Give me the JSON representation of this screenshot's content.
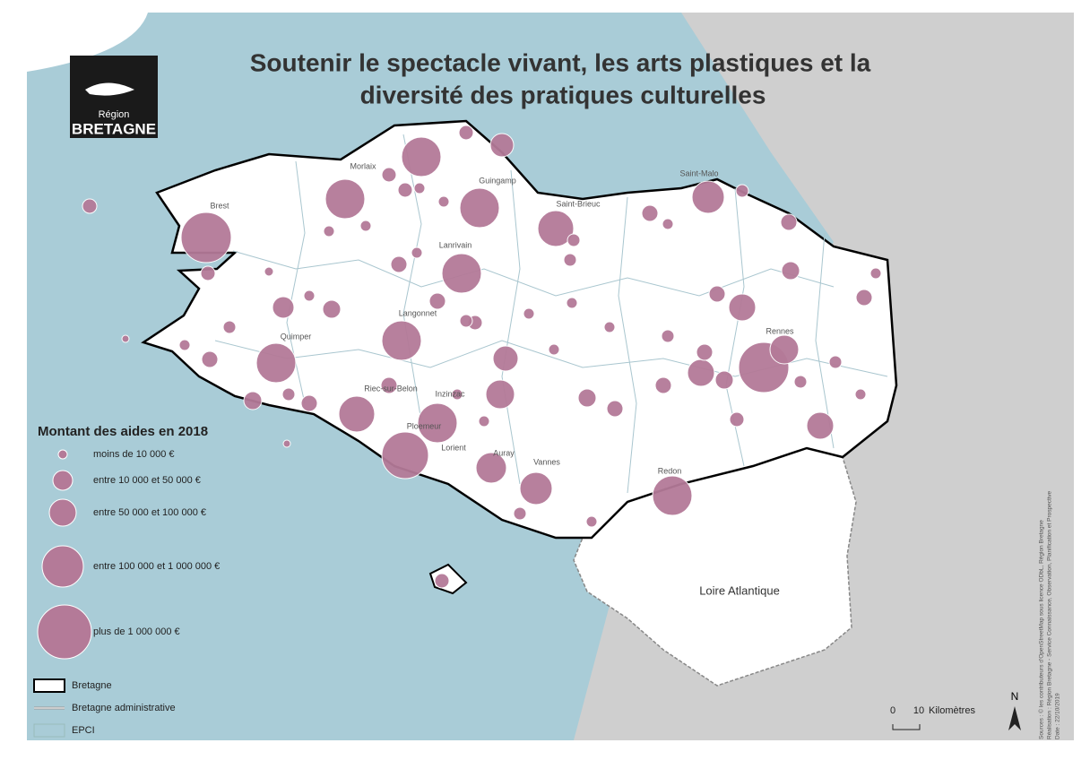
{
  "title": [
    "Soutenir le spectacle vivant, les arts plastiques et la",
    "diversité des pratiques culturelles"
  ],
  "logo": {
    "region": "Région",
    "name": "BRETAGNE"
  },
  "places": [
    "Brest",
    "Morlaix",
    "Guingamp",
    "Saint-Brieuc",
    "Saint-Malo",
    "Lanrivain",
    "Langonnet",
    "Quimper",
    "Riec-sur-Belon",
    "Inzinzac",
    "Ploemeur",
    "Lorient",
    "Auray",
    "Vannes",
    "Redon",
    "Rennes"
  ],
  "department": "Loire Atlantique",
  "legend": {
    "title": "Montant des aides en 2018",
    "classes": [
      "moins de 10 000 €",
      "entre 10 000 et 50 000 €",
      "entre 50 000 et 100 000 €",
      "entre 100 000 et 1 000 000 €",
      "plus de 1 000 000 €"
    ],
    "boundaries": [
      "Bretagne",
      "Bretagne administrative",
      "EPCI"
    ]
  },
  "scale": {
    "start": "0",
    "end": "10",
    "unit": "Kilomètres"
  },
  "north": "N",
  "sources": [
    "Sources : © les contributeurs d'OpenStreetMap sous licence ODbL, Région Bretagne",
    "Réalisation : Région Bretagne - Service Connaissance, Observation, Planification et Prospective",
    "Date : 22/10/2019"
  ]
}
